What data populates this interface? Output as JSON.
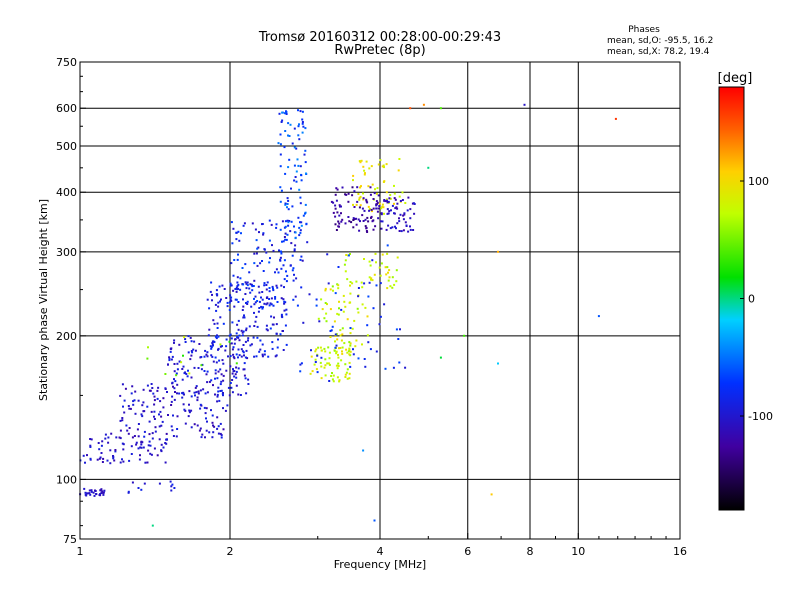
{
  "header": {
    "title_line1": "Tromsø 20160312 00:28:00-00:29:43",
    "title_line2": "RwPretec (8p)"
  },
  "stats": {
    "heading": "Phases",
    "line_o": "mean, sd,O: -95.5, 16.2",
    "line_x": "mean, sd,X:  78.2, 19.4"
  },
  "colorbar": {
    "unit": "[deg]",
    "range": [
      -180,
      180
    ],
    "ticks": [
      {
        "value": 100,
        "label": "100"
      },
      {
        "value": 0,
        "label": "0"
      },
      {
        "value": -100,
        "label": "-100"
      }
    ]
  },
  "chart_data": {
    "type": "scatter",
    "xlabel": "Frequency [MHz]",
    "ylabel": "Stationary phase Virtual Height [km]",
    "x_scale": "log",
    "y_scale": "log",
    "xlim": [
      1,
      16
    ],
    "ylim": [
      75,
      750
    ],
    "x_ticks": [
      {
        "value": 1,
        "label": "1"
      },
      {
        "value": 2,
        "label": "2"
      },
      {
        "value": 4,
        "label": "4"
      },
      {
        "value": 6,
        "label": "6"
      },
      {
        "value": 8,
        "label": "8"
      },
      {
        "value": 10,
        "label": "10"
      },
      {
        "value": 16,
        "label": "16"
      }
    ],
    "y_ticks": [
      {
        "value": 75,
        "label": "75"
      },
      {
        "value": 100,
        "label": "100"
      },
      {
        "value": 200,
        "label": "200"
      },
      {
        "value": 300,
        "label": "300"
      },
      {
        "value": 400,
        "label": "400"
      },
      {
        "value": 500,
        "label": "500"
      },
      {
        "value": 600,
        "label": "600"
      },
      {
        "value": 750,
        "label": "750"
      }
    ],
    "x_gridlines": [
      2,
      4,
      6,
      8,
      10
    ],
    "y_gridlines": [
      100,
      200,
      300,
      400,
      500,
      600
    ],
    "color_by": "phase (deg)",
    "clusters": [
      {
        "f": [
          1.0,
          1.12
        ],
        "h": [
          92,
          96
        ],
        "phase": [
          -115,
          -95
        ],
        "n": 30
      },
      {
        "f": [
          1.25,
          1.6
        ],
        "h": [
          92,
          99
        ],
        "phase": [
          -110,
          -80
        ],
        "n": 12
      },
      {
        "f": [
          1.0,
          1.5
        ],
        "h": [
          108,
          125
        ],
        "phase": [
          -120,
          -90
        ],
        "n": 80
      },
      {
        "f": [
          1.2,
          2.0
        ],
        "h": [
          122,
          160
        ],
        "phase": [
          -120,
          -85
        ],
        "n": 160
      },
      {
        "f": [
          1.5,
          2.2
        ],
        "h": [
          150,
          200
        ],
        "phase": [
          -115,
          -80
        ],
        "n": 150
      },
      {
        "f": [
          1.8,
          2.6
        ],
        "h": [
          180,
          260
        ],
        "phase": [
          -110,
          -70
        ],
        "n": 180
      },
      {
        "f": [
          2.0,
          2.8
        ],
        "h": [
          230,
          350
        ],
        "phase": [
          -110,
          -60
        ],
        "n": 140
      },
      {
        "f": [
          2.5,
          2.85
        ],
        "h": [
          320,
          600
        ],
        "phase": [
          -95,
          -40
        ],
        "n": 90
      },
      {
        "f": [
          1.3,
          2.1
        ],
        "h": [
          150,
          200
        ],
        "phase": [
          20,
          90
        ],
        "n": 12
      },
      {
        "f": [
          2.9,
          3.5
        ],
        "h": [
          160,
          190
        ],
        "phase": [
          60,
          100
        ],
        "n": 70
      },
      {
        "f": [
          3.0,
          3.8
        ],
        "h": [
          190,
          260
        ],
        "phase": [
          55,
          105
        ],
        "n": 60
      },
      {
        "f": [
          3.4,
          4.4
        ],
        "h": [
          250,
          300
        ],
        "phase": [
          60,
          100
        ],
        "n": 40
      },
      {
        "f": [
          3.5,
          4.5
        ],
        "h": [
          360,
          470
        ],
        "phase": [
          70,
          110
        ],
        "n": 60
      },
      {
        "f": [
          3.2,
          4.0
        ],
        "h": [
          330,
          410
        ],
        "phase": [
          -140,
          -110
        ],
        "n": 90
      },
      {
        "f": [
          4.0,
          4.7
        ],
        "h": [
          330,
          390
        ],
        "phase": [
          -125,
          -95
        ],
        "n": 60
      },
      {
        "f": [
          2.7,
          4.5
        ],
        "h": [
          160,
          320
        ],
        "phase": [
          -100,
          -60
        ],
        "n": 60
      }
    ],
    "outliers": [
      {
        "f": 5.3,
        "h": 180,
        "phase": 10
      },
      {
        "f": 5.9,
        "h": 200,
        "phase": 35
      },
      {
        "f": 6.7,
        "h": 93,
        "phase": 110
      },
      {
        "f": 6.9,
        "h": 300,
        "phase": 120
      },
      {
        "f": 6.9,
        "h": 175,
        "phase": -20
      },
      {
        "f": 7.8,
        "h": 610,
        "phase": -105
      },
      {
        "f": 11.0,
        "h": 220,
        "phase": -60
      },
      {
        "f": 11.9,
        "h": 570,
        "phase": 160
      },
      {
        "f": 3.7,
        "h": 115,
        "phase": -40
      },
      {
        "f": 3.9,
        "h": 82,
        "phase": -60
      },
      {
        "f": 1.4,
        "h": 80,
        "phase": 0
      },
      {
        "f": 4.6,
        "h": 600,
        "phase": 150
      },
      {
        "f": 4.9,
        "h": 610,
        "phase": 130
      },
      {
        "f": 5.3,
        "h": 600,
        "phase": 40
      },
      {
        "f": 5.0,
        "h": 450,
        "phase": 0
      }
    ]
  }
}
